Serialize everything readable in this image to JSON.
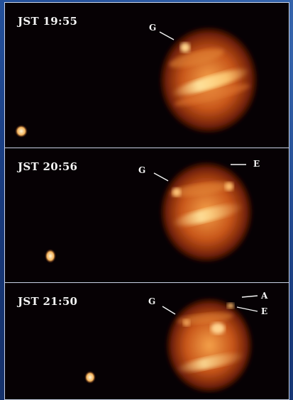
{
  "panels": [
    {
      "timestamp": "JST 19:55",
      "spot_labels": [
        "G"
      ]
    },
    {
      "timestamp": "JST 20:56",
      "spot_labels": [
        "G",
        "E"
      ]
    },
    {
      "timestamp": "JST 21:50",
      "spot_labels": [
        "G",
        "A",
        "E"
      ]
    }
  ],
  "colors": {
    "background": "#1a3f86",
    "panel_fill": "#060104",
    "planet_core": "#ffd07a",
    "planet_edge": "#5a1a06",
    "label_text": "#f4f4f4"
  }
}
